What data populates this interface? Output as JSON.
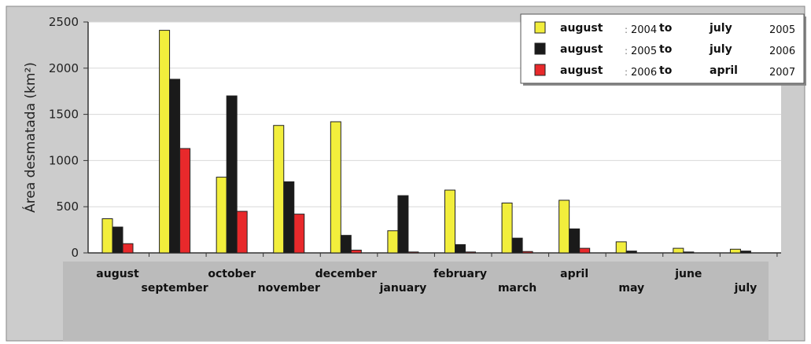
{
  "chart_data": {
    "type": "bar",
    "ylabel": "Área desmatada (km²)",
    "ylim": [
      0,
      2500
    ],
    "yticks": [
      "0",
      "500",
      "1000",
      "1500",
      "2000",
      "2500"
    ],
    "grid": true,
    "legend_position": "top-right",
    "categories": [
      "august",
      "september",
      "october",
      "november",
      "december",
      "january",
      "february",
      "march",
      "april",
      "may",
      "june",
      "july"
    ],
    "series": [
      {
        "name": "august 2004 to july 2005",
        "color": "#f2ee3c",
        "values": [
          370,
          2410,
          820,
          1380,
          1420,
          240,
          680,
          540,
          570,
          120,
          50,
          40
        ],
        "legend": {
          "from_month": "august",
          "from_year": "2004",
          "to_word": "to",
          "to_month": "july",
          "to_year": "2005"
        }
      },
      {
        "name": "august 2005 to july 2006",
        "color": "#1a1a1a",
        "values": [
          280,
          1880,
          1700,
          770,
          190,
          620,
          90,
          160,
          260,
          20,
          10,
          20
        ],
        "legend": {
          "from_month": "august",
          "from_year": "2005",
          "to_word": "to",
          "to_month": "july",
          "to_year": "2006"
        }
      },
      {
        "name": "august 2006 to april 2007",
        "color": "#e8292b",
        "values": [
          100,
          1130,
          450,
          420,
          30,
          10,
          10,
          15,
          50,
          null,
          null,
          null
        ],
        "legend": {
          "from_month": "august",
          "from_year": "2006",
          "to_word": "to",
          "to_month": "april",
          "to_year": "2007"
        }
      }
    ]
  }
}
